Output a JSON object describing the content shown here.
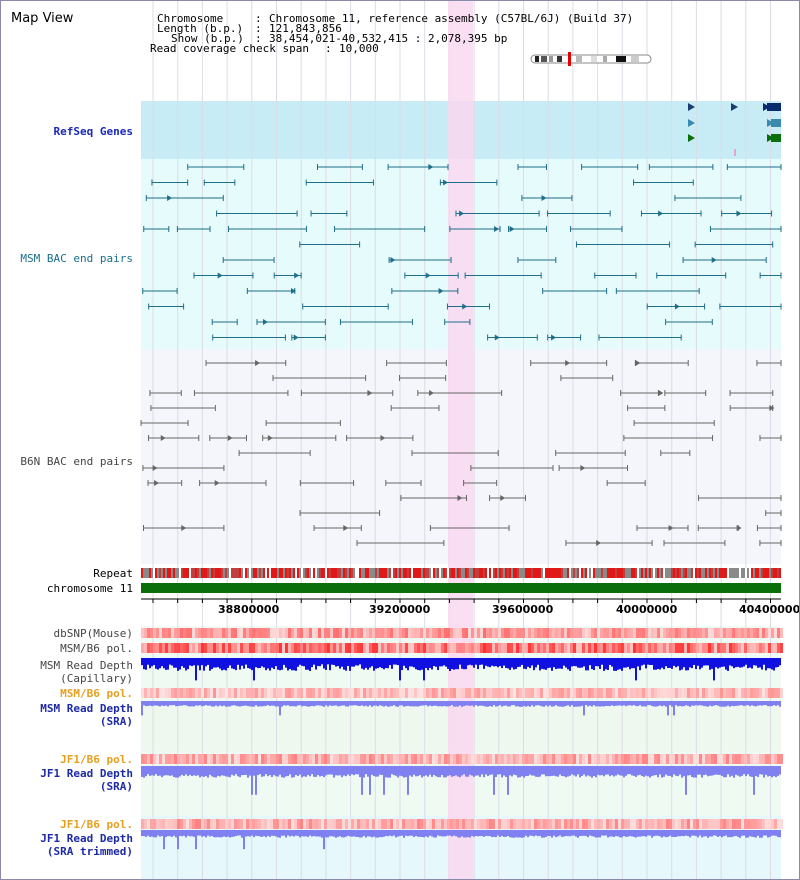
{
  "header": {
    "title": "Map View",
    "chromosome_label": "Chromosome",
    "chromosome_value": "Chromosome 11, reference assembly (C57BL/6J) (Build 37)",
    "length_label": "Length (b.p.)",
    "length_value": "121,843,856",
    "show_label": "Show (b.p.)",
    "show_value": "38,454,021-40,532,415 : 2,078,395 bp",
    "coverage_label": "Read coverage check span",
    "coverage_value": "10,000"
  },
  "tracks": {
    "refseq": "RefSeq Genes",
    "msm_bac": "MSM BAC end pairs",
    "b6n_bac": "B6N BAC end pairs",
    "repeat": "Repeat",
    "chromosome": "chromosome 11",
    "dbsnp": "dbSNP(Mouse)",
    "msm_b6_pol_1": "MSM/B6 pol.",
    "msm_depth_cap_1": "MSM Read Depth",
    "msm_depth_cap_2": "(Capillary)",
    "msm_b6_pol_2": "MSM/B6 pol.",
    "msm_depth_sra_1": "MSM Read Depth",
    "msm_depth_sra_2": "(SRA)",
    "jf1_b6_pol_1": "JF1/B6 pol.",
    "jf1_depth_sra_1": "JF1 Read Depth",
    "jf1_depth_sra_2": "(SRA)",
    "jf1_b6_pol_2": "JF1/B6 pol.",
    "jf1_depth_trim_1": "JF1 Read Depth",
    "jf1_depth_trim_2": "(SRA trimmed)"
  },
  "axis": {
    "ticks": [
      "38800000",
      "39200000",
      "39600000",
      "40000000",
      "40400000"
    ]
  },
  "colors": {
    "refseq_bg": "#c8ecf6",
    "bac_bg": "#e6fbfb",
    "lower_bg": "#eefaf2",
    "highlight": "#f9d8f0",
    "msm_feature": "#1f6e8a",
    "b6n_feature": "#666666",
    "chromosome_bar": "#0a6e0a",
    "depth_dark": "#1010e0",
    "depth_light": "#8080f0"
  },
  "icons": {
    "ideogram": "chromosome-ideogram-icon"
  }
}
